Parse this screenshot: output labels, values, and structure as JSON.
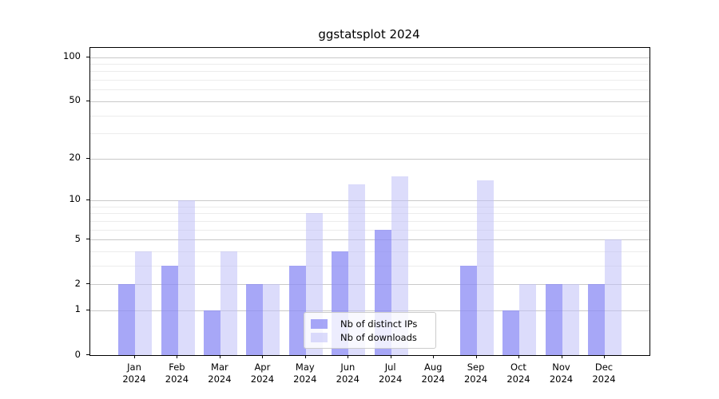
{
  "chart_data": {
    "type": "bar",
    "title": "ggstatsplot 2024",
    "scale": "log1p",
    "grid": true,
    "categories": [
      "Jan",
      "Feb",
      "Mar",
      "Apr",
      "May",
      "Jun",
      "Jul",
      "Aug",
      "Sep",
      "Oct",
      "Nov",
      "Dec"
    ],
    "category_year": "2024",
    "series": [
      {
        "name": "Nb of distinct IPs",
        "color": "#8989f4",
        "fill_alpha": 0.75,
        "values": [
          2,
          3,
          1,
          2,
          3,
          4,
          6,
          0,
          3,
          1,
          2,
          2
        ]
      },
      {
        "name": "Nb of downloads",
        "color": "#c0c0f7",
        "fill_alpha": 0.55,
        "values": [
          4,
          10,
          4,
          2,
          8,
          13,
          15,
          0,
          14,
          2,
          2,
          5
        ]
      }
    ],
    "ylim": [
      0,
      100
    ],
    "y_major_ticks": [
      0,
      1,
      2,
      5,
      10,
      20,
      50,
      100
    ],
    "y_minor_gridlines": [
      3,
      4,
      6,
      7,
      8,
      9,
      30,
      40,
      60,
      70,
      80,
      90
    ],
    "xlabel": "",
    "ylabel": "",
    "legend_position": "lower center"
  },
  "colors": {
    "major_grid": "#c9c9c9",
    "minor_grid": "#ececec",
    "spine": "#000000",
    "background": "#ffffff",
    "text": "#000000"
  }
}
